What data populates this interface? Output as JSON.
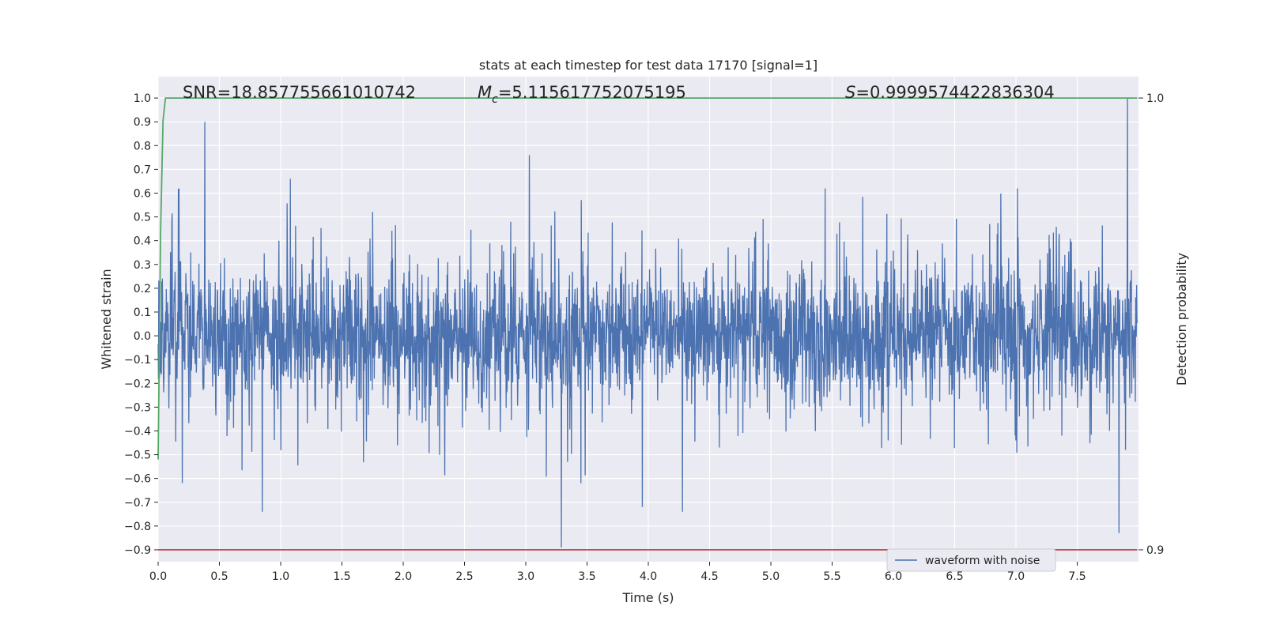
{
  "chart_data": {
    "type": "line",
    "title": "stats at each timestep for test data 17170 [signal=1]",
    "xlabel": "Time (s)",
    "ylabel": "Whitened strain",
    "ylabel_right": "Detection probability",
    "xlim": [
      0.0,
      8.0
    ],
    "ylim": [
      -0.95,
      1.09
    ],
    "xticks": [
      "0.0",
      "0.5",
      "1.0",
      "1.5",
      "2.0",
      "2.5",
      "3.0",
      "3.5",
      "4.0",
      "4.5",
      "5.0",
      "5.5",
      "6.0",
      "6.5",
      "7.0",
      "7.5"
    ],
    "yticks": [
      "1.0",
      "0.9",
      "0.8",
      "0.7",
      "0.6",
      "0.5",
      "0.4",
      "0.3",
      "0.2",
      "0.1",
      "0.0",
      "−0.1",
      "−0.2",
      "−0.3",
      "−0.4",
      "−0.5",
      "−0.6",
      "−0.7",
      "−0.8",
      "−0.9"
    ],
    "yticks_right": [
      "1.0",
      "0.9"
    ],
    "annotations": {
      "snr": "SNR=18.857755661010742",
      "mc_symbol": "M",
      "mc_sub": "c",
      "mc_value": "=5.115617752075195",
      "s_symbol": "S",
      "s_value": "=0.9999574422836304"
    },
    "legend": {
      "label": "waveform with noise",
      "placement": "lower-right"
    },
    "grid": true,
    "colors": {
      "background": "#eaeaf2",
      "grid": "#ffffff",
      "waveform": "#4c72b0",
      "probability": "#55a868",
      "threshold": "#c44e52"
    },
    "series": [
      {
        "name": "waveform with noise",
        "axis": "left",
        "style": "dense noise",
        "x_range": [
          0.0,
          7.99
        ],
        "envelope_typical": [
          -0.3,
          0.3
        ],
        "peaks": [
          {
            "x": 0.38,
            "y": 0.9
          },
          {
            "x": 0.85,
            "y": -0.74
          },
          {
            "x": 1.08,
            "y": 0.66
          },
          {
            "x": 3.03,
            "y": 0.76
          },
          {
            "x": 3.29,
            "y": -0.89
          },
          {
            "x": 3.95,
            "y": -0.72
          },
          {
            "x": 4.28,
            "y": -0.74
          },
          {
            "x": 7.84,
            "y": -0.83
          },
          {
            "x": 7.91,
            "y": 1.0
          }
        ]
      },
      {
        "name": "",
        "axis": "right",
        "x": [
          0.0,
          0.02,
          0.04,
          0.06,
          0.08,
          2.0,
          4.0,
          6.0,
          7.99
        ],
        "y": [
          0.92,
          0.97,
          0.995,
          1.0,
          1.0,
          1.0,
          1.0,
          1.0,
          1.0
        ]
      },
      {
        "name": "",
        "axis": "right",
        "x": [
          0.0,
          7.99
        ],
        "y": [
          0.9,
          0.9
        ]
      }
    ]
  }
}
